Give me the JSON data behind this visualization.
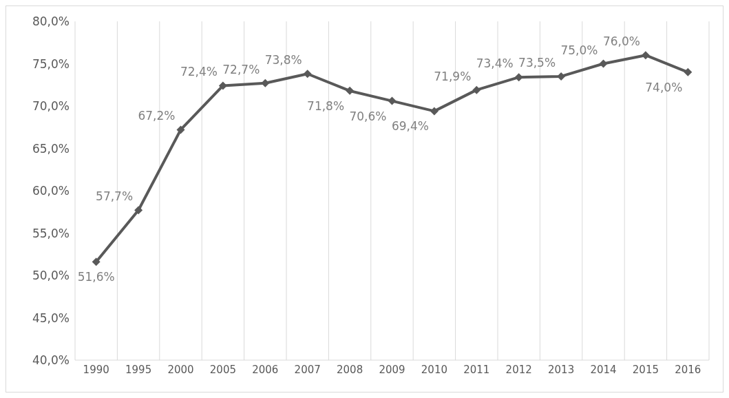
{
  "chart_data": {
    "type": "line",
    "categories": [
      "1990",
      "1995",
      "2000",
      "2005",
      "2006",
      "2007",
      "2008",
      "2009",
      "2010",
      "2011",
      "2012",
      "2013",
      "2014",
      "2015",
      "2016"
    ],
    "series": [
      {
        "color": "#595959",
        "values": [
          51.6,
          57.7,
          67.2,
          72.4,
          72.7,
          73.8,
          71.8,
          70.6,
          69.4,
          71.9,
          73.4,
          73.5,
          75.0,
          76.0,
          74.0
        ],
        "value_labels": [
          "51,6%",
          "57,7%",
          "67,2%",
          "72,4%",
          "72,7%",
          "73,8%",
          "71,8%",
          "70,6%",
          "69,4%",
          "71,9%",
          "73,4%",
          "73,5%",
          "75,0%",
          "76,0%",
          "74,0%"
        ]
      }
    ],
    "ylim": [
      40,
      80
    ],
    "yticks": [
      {
        "value": 40,
        "label": "40,0%"
      },
      {
        "value": 45,
        "label": "45,0%"
      },
      {
        "value": 50,
        "label": "50,0%"
      },
      {
        "value": 55,
        "label": "55,0%"
      },
      {
        "value": 60,
        "label": "60,0%"
      },
      {
        "value": 65,
        "label": "65,0%"
      },
      {
        "value": 70,
        "label": "70,0%"
      },
      {
        "value": 75,
        "label": "75,0%"
      },
      {
        "value": 80,
        "label": "80,0%"
      }
    ],
    "grid": "x",
    "legend": false,
    "marker": "diamond",
    "line_style": "solid"
  }
}
